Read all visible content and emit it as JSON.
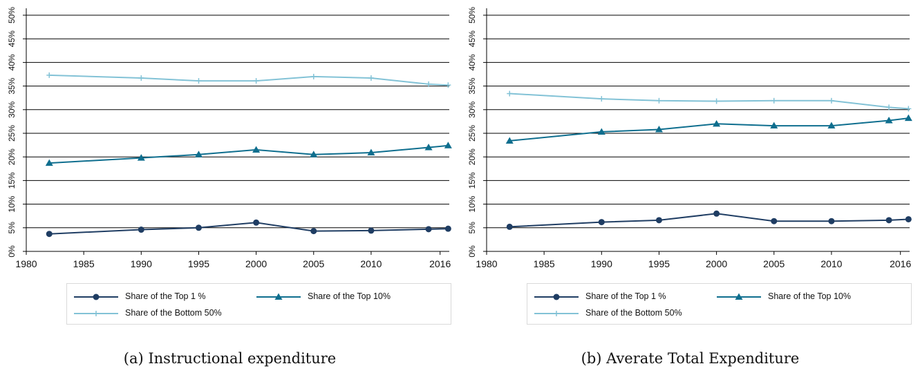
{
  "colors": {
    "top1": "#1f3d63",
    "top10": "#0e6e8e",
    "bottom50": "#82c2d6"
  },
  "legend": {
    "top1": "Share of the Top 1 %",
    "top10": "Share of the Top 10%",
    "bottom50": "Share of the Bottom 50%"
  },
  "chart_data": [
    {
      "type": "line",
      "title": "(a) Instructional expenditure",
      "xlabel": "",
      "ylabel": "",
      "xlim": [
        1980,
        2016.8
      ],
      "ylim": [
        0,
        50
      ],
      "x_ticks": [
        1980,
        1985,
        1990,
        1995,
        2000,
        2005,
        2010,
        2016
      ],
      "y_ticks": [
        0,
        5,
        10,
        15,
        20,
        25,
        30,
        35,
        40,
        45,
        50
      ],
      "y_tick_labels": [
        "0%",
        "5%",
        "10%",
        "15%",
        "20%",
        "25%",
        "30%",
        "35%",
        "40%",
        "45%",
        "50%"
      ],
      "grid": "horizontal",
      "legend_position": "bottom",
      "x": [
        1982,
        1990,
        1995,
        2000,
        2005,
        2010,
        2015,
        2016.7
      ],
      "series": [
        {
          "name": "Share of the Top 1 %",
          "marker": "circle",
          "color": "#1f3d63",
          "values": [
            3.7,
            4.6,
            5.0,
            6.1,
            4.3,
            4.4,
            4.7,
            4.8
          ]
        },
        {
          "name": "Share of the Top 10%",
          "marker": "triangle",
          "color": "#0e6e8e",
          "values": [
            18.7,
            19.8,
            20.5,
            21.5,
            20.5,
            20.9,
            22.0,
            22.4
          ]
        },
        {
          "name": "Share of the Bottom 50%",
          "marker": "plus",
          "color": "#82c2d6",
          "values": [
            37.3,
            36.7,
            36.1,
            36.1,
            37.0,
            36.7,
            35.4,
            35.2
          ]
        }
      ]
    },
    {
      "type": "line",
      "title": "(b) Averate Total Expenditure",
      "xlabel": "",
      "ylabel": "",
      "xlim": [
        1980,
        2016.8
      ],
      "ylim": [
        0,
        50
      ],
      "x_ticks": [
        1980,
        1985,
        1990,
        1995,
        2000,
        2005,
        2010,
        2016
      ],
      "y_ticks": [
        0,
        5,
        10,
        15,
        20,
        25,
        30,
        35,
        40,
        45,
        50
      ],
      "y_tick_labels": [
        "0%",
        "5%",
        "10%",
        "15%",
        "20%",
        "25%",
        "30%",
        "35%",
        "40%",
        "45%",
        "50%"
      ],
      "grid": "horizontal",
      "legend_position": "bottom",
      "x": [
        1982,
        1990,
        1995,
        2000,
        2005,
        2010,
        2015,
        2016.7
      ],
      "series": [
        {
          "name": "Share of the Top 1 %",
          "marker": "circle",
          "color": "#1f3d63",
          "values": [
            5.2,
            6.2,
            6.6,
            8.0,
            6.4,
            6.4,
            6.6,
            6.8
          ]
        },
        {
          "name": "Share of the Top 10%",
          "marker": "triangle",
          "color": "#0e6e8e",
          "values": [
            23.4,
            25.3,
            25.8,
            27.0,
            26.6,
            26.6,
            27.7,
            28.2
          ]
        },
        {
          "name": "Share of the Bottom 50%",
          "marker": "plus",
          "color": "#82c2d6",
          "values": [
            33.4,
            32.3,
            31.9,
            31.8,
            31.9,
            31.9,
            30.5,
            30.2
          ]
        }
      ]
    }
  ]
}
